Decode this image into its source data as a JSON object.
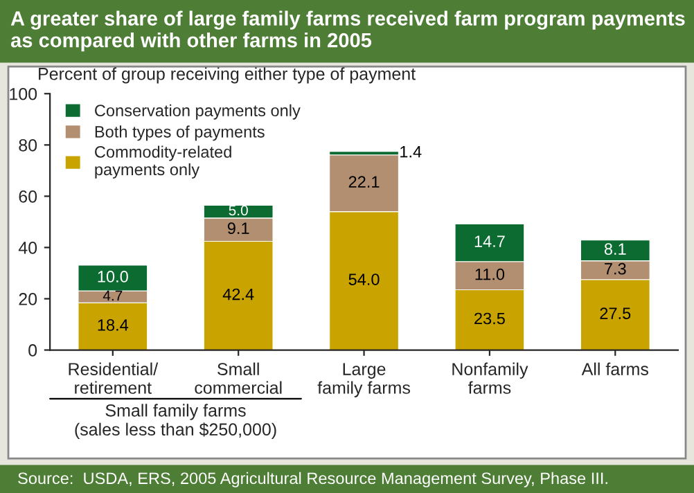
{
  "chart_data": {
    "type": "bar",
    "stacked": true,
    "title": "A greater share of large family farms received farm program payments as compared with other farms in 2005",
    "ylabel": "Percent of group receiving either type of payment",
    "categories": [
      "Residential/\nretirement",
      "Small\ncommercial",
      "Large\nfamily farms",
      "Nonfamily\nfarms",
      "All farms"
    ],
    "series": [
      {
        "name": "Commodity-related\npayments only",
        "color": "#c9a400",
        "values": [
          18.4,
          42.4,
          54.0,
          23.5,
          27.5
        ],
        "value_labels": [
          "18.4",
          "42.4",
          "54.0",
          "23.5",
          "27.5"
        ]
      },
      {
        "name": "Both types of payments",
        "color": "#b38f72",
        "values": [
          4.7,
          9.1,
          22.1,
          11.0,
          7.3
        ],
        "value_labels": [
          "4.7",
          "9.1",
          "22.1",
          "11.0",
          "7.3"
        ]
      },
      {
        "name": "Conservation payments only",
        "color": "#0b6b30",
        "values": [
          10.0,
          5.0,
          1.4,
          14.7,
          8.1
        ],
        "value_labels": [
          "10.0",
          "5.0",
          "1.4",
          "14.7",
          "8.1"
        ]
      }
    ],
    "ylim": [
      0,
      100
    ],
    "yticks": [
      0,
      20,
      40,
      60,
      80,
      100
    ],
    "legend": "top left",
    "grid": false,
    "annotations": [
      "Small family farms\n(sales less than $250,000)",
      "Source:  USDA, ERS, 2005 Agricultural Resource Management Survey, Phase III."
    ]
  }
}
